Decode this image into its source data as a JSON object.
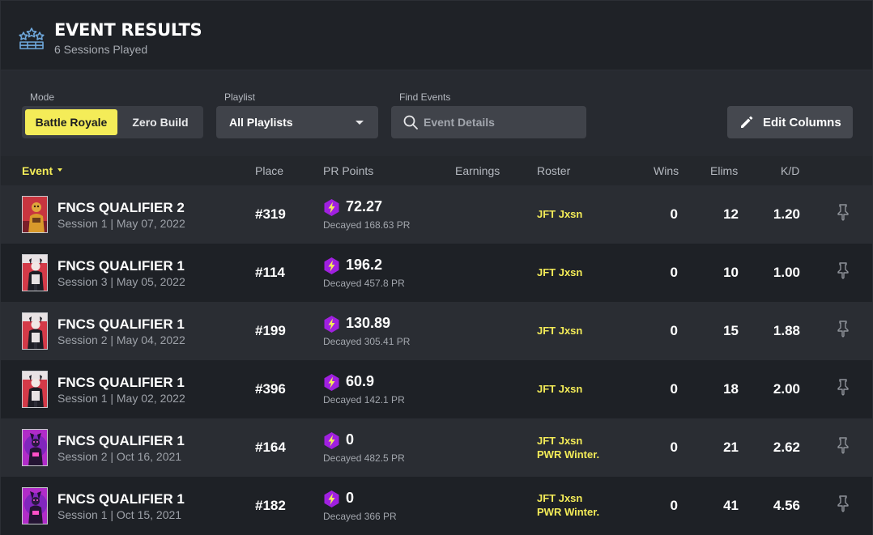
{
  "header": {
    "title": "EVENT RESULTS",
    "subtitle": "6 Sessions Played",
    "icon": "trophy-stars-icon"
  },
  "controls": {
    "mode_label": "Mode",
    "mode_options": [
      "Battle Royale",
      "Zero Build"
    ],
    "mode_selected": "Battle Royale",
    "playlist_label": "Playlist",
    "playlist_value": "All Playlists",
    "find_label": "Find Events",
    "find_placeholder": "Event Details",
    "edit_columns": "Edit Columns"
  },
  "columns": {
    "event": "Event",
    "place": "Place",
    "pr_points": "PR Points",
    "earnings": "Earnings",
    "roster": "Roster",
    "wins": "Wins",
    "elims": "Elims",
    "kd": "K/D"
  },
  "rows": [
    {
      "name": "FNCS QUALIFIER 2",
      "session": "Session 1 | May 07, 2022",
      "place": "#319",
      "pr": "72.27",
      "decayed": "Decayed 168.63 PR",
      "roster": [
        "JFT Jxsn"
      ],
      "wins": "0",
      "elims": "12",
      "kd": "1.20",
      "skin": "gold"
    },
    {
      "name": "FNCS QUALIFIER 1",
      "session": "Session 3 | May 05, 2022",
      "place": "#114",
      "pr": "196.2",
      "decayed": "Decayed 457.8 PR",
      "roster": [
        "JFT Jxsn"
      ],
      "wins": "0",
      "elims": "10",
      "kd": "1.00",
      "skin": "red"
    },
    {
      "name": "FNCS QUALIFIER 1",
      "session": "Session 2 | May 04, 2022",
      "place": "#199",
      "pr": "130.89",
      "decayed": "Decayed 305.41 PR",
      "roster": [
        "JFT Jxsn"
      ],
      "wins": "0",
      "elims": "15",
      "kd": "1.88",
      "skin": "red"
    },
    {
      "name": "FNCS QUALIFIER 1",
      "session": "Session 1 | May 02, 2022",
      "place": "#396",
      "pr": "60.9",
      "decayed": "Decayed 142.1 PR",
      "roster": [
        "JFT Jxsn"
      ],
      "wins": "0",
      "elims": "18",
      "kd": "2.00",
      "skin": "red"
    },
    {
      "name": "FNCS QUALIFIER 1",
      "session": "Session 2 | Oct 16, 2021",
      "place": "#164",
      "pr": "0",
      "decayed": "Decayed 482.5 PR",
      "roster": [
        "JFT Jxsn",
        "PWR Winter."
      ],
      "wins": "0",
      "elims": "21",
      "kd": "2.62",
      "skin": "purple"
    },
    {
      "name": "FNCS QUALIFIER 1",
      "session": "Session 1 | Oct 15, 2021",
      "place": "#182",
      "pr": "0",
      "decayed": "Decayed 366 PR",
      "roster": [
        "JFT Jxsn",
        "PWR Winter."
      ],
      "wins": "0",
      "elims": "41",
      "kd": "4.56",
      "skin": "purple"
    }
  ],
  "colors": {
    "accent": "#f4ec58",
    "pr_badge": "#a020e0",
    "background": "#212429"
  }
}
